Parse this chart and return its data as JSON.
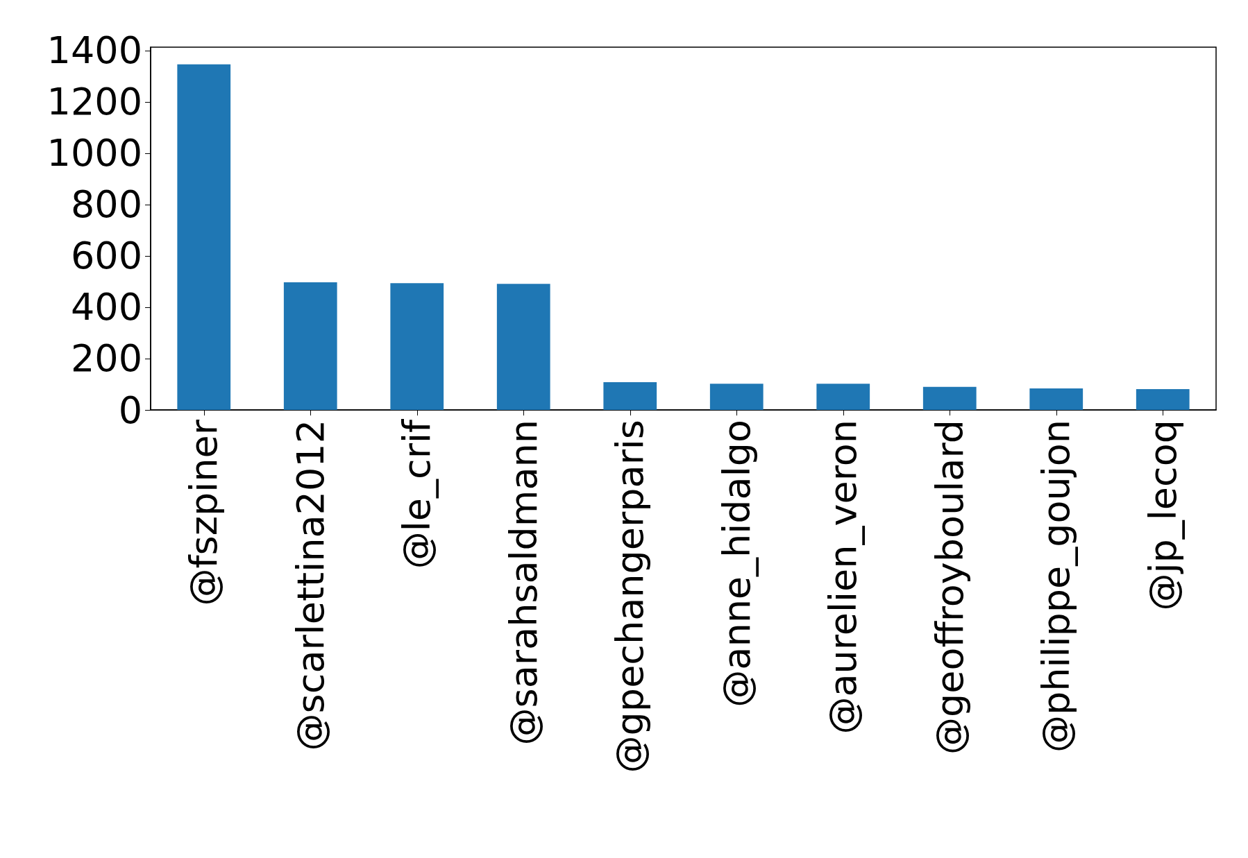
{
  "chart_data": {
    "type": "bar",
    "categories": [
      "@fszpiner",
      "@scarlettina2012",
      "@le_crif",
      "@sarahsaldmann",
      "@gpechangerparis",
      "@anne_hidalgo",
      "@aurelien_veron",
      "@geoffroyboulard",
      "@philippe_goujon",
      "@jp_lecoq"
    ],
    "values": [
      1346,
      497,
      494,
      491,
      108,
      102,
      102,
      90,
      84,
      81
    ],
    "color": "#1f77b4",
    "ylim": [
      0,
      1413
    ],
    "yticks": [
      0,
      200,
      400,
      600,
      800,
      1000,
      1200,
      1400
    ],
    "grid": false
  }
}
